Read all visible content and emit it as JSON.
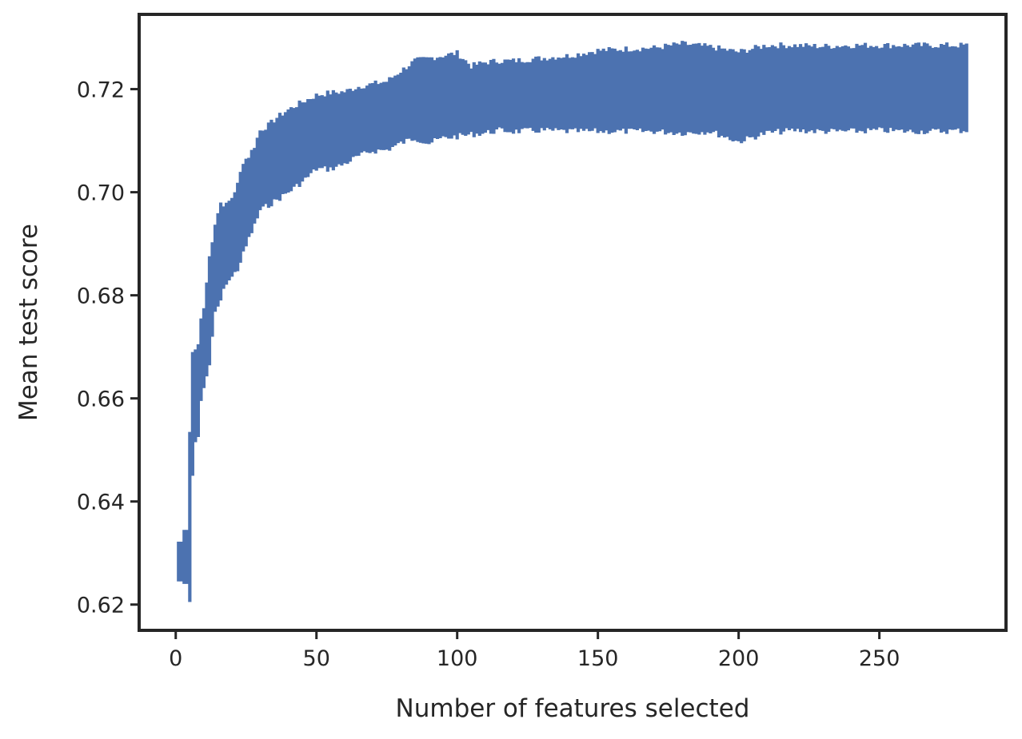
{
  "chart_data": {
    "type": "line",
    "title": "",
    "xlabel": "Number of features selected",
    "ylabel": "Mean test score",
    "xlim": [
      -13,
      295
    ],
    "ylim": [
      0.615,
      0.7345
    ],
    "xticks": [
      0,
      50,
      100,
      150,
      200,
      250
    ],
    "xtick_labels": [
      "0",
      "50",
      "100",
      "150",
      "200",
      "250"
    ],
    "yticks": [
      0.62,
      0.64,
      0.66,
      0.68,
      0.7,
      0.72
    ],
    "ytick_labels": [
      "0.62",
      "0.64",
      "0.66",
      "0.68",
      "0.70",
      "0.72"
    ],
    "grid": false,
    "legend": false,
    "series_color": "#4c72b0",
    "axes_color": "#262626",
    "series": [
      {
        "style": "error band (mean ± std per feature count)",
        "x": [
          1,
          2,
          3,
          4,
          5,
          6,
          7,
          8,
          9,
          10,
          12,
          14,
          16,
          18,
          20,
          22,
          24,
          26,
          28,
          30,
          33,
          36,
          40,
          45,
          50,
          55,
          60,
          65,
          70,
          75,
          80,
          85,
          90,
          95,
          100,
          105,
          110,
          115,
          120,
          130,
          140,
          150,
          160,
          170,
          180,
          190,
          200,
          210,
          220,
          230,
          240,
          250,
          260,
          270,
          281
        ],
        "upper": [
          0.6322,
          0.6322,
          0.6345,
          0.6345,
          0.6535,
          0.669,
          0.6695,
          0.6705,
          0.6755,
          0.6775,
          0.6875,
          0.694,
          0.698,
          0.6975,
          0.699,
          0.7015,
          0.706,
          0.707,
          0.709,
          0.712,
          0.713,
          0.7145,
          0.716,
          0.7175,
          0.7188,
          0.7193,
          0.7195,
          0.7205,
          0.721,
          0.7215,
          0.7235,
          0.7255,
          0.726,
          0.7265,
          0.727,
          0.7245,
          0.7252,
          0.7255,
          0.7255,
          0.726,
          0.7265,
          0.7275,
          0.7278,
          0.728,
          0.7288,
          0.7282,
          0.7272,
          0.7285,
          0.7285,
          0.7283,
          0.7285,
          0.7285,
          0.7285,
          0.7285,
          0.7285
        ],
        "lower": [
          0.6245,
          0.6245,
          0.624,
          0.624,
          0.6205,
          0.645,
          0.6515,
          0.6525,
          0.6595,
          0.662,
          0.6665,
          0.6765,
          0.679,
          0.6825,
          0.6835,
          0.685,
          0.688,
          0.691,
          0.6935,
          0.6965,
          0.6975,
          0.6985,
          0.7,
          0.702,
          0.7045,
          0.7045,
          0.7055,
          0.707,
          0.708,
          0.7082,
          0.7095,
          0.7105,
          0.7095,
          0.7105,
          0.7108,
          0.7112,
          0.7115,
          0.712,
          0.7118,
          0.712,
          0.7118,
          0.7118,
          0.7118,
          0.7118,
          0.7115,
          0.7118,
          0.7098,
          0.7115,
          0.712,
          0.7118,
          0.7118,
          0.712,
          0.7118,
          0.7118,
          0.712
        ]
      }
    ]
  }
}
